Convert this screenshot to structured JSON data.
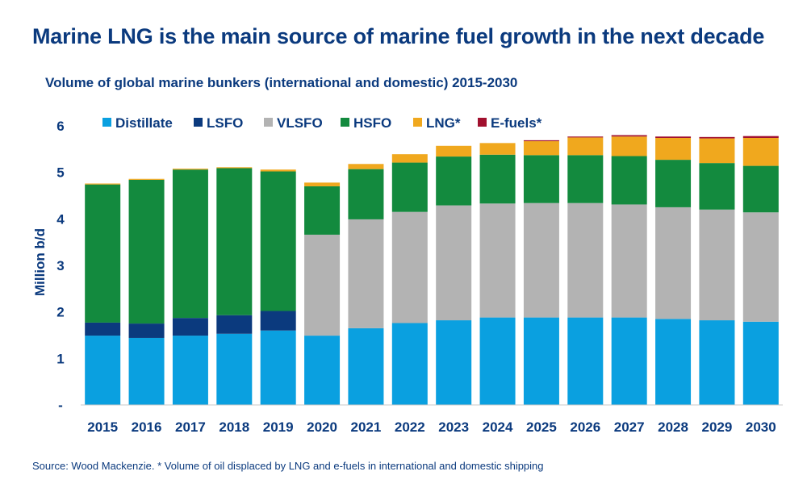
{
  "header": {
    "title": "Marine LNG is the main source of marine fuel growth in the next decade",
    "subtitle": "Volume of global marine bunkers (international and domestic) 2015-2030"
  },
  "footer": {
    "source": "Source: Wood Mackenzie. * Volume of oil displaced by LNG and e-fuels in international and domestic shipping"
  },
  "chart_data": {
    "type": "bar",
    "stacked": true,
    "title": "Volume of global marine bunkers (international and domestic) 2015-2030",
    "xlabel": "",
    "ylabel": "Million b/d",
    "ylim": [
      0,
      6
    ],
    "yticks": [
      "-",
      "1",
      "2",
      "3",
      "4",
      "5",
      "6"
    ],
    "grid": false,
    "legend_position": "top",
    "categories": [
      "2015",
      "2016",
      "2017",
      "2018",
      "2019",
      "2020",
      "2021",
      "2022",
      "2023",
      "2024",
      "2025",
      "2026",
      "2027",
      "2028",
      "2029",
      "2030"
    ],
    "series": [
      {
        "name": "Distillate",
        "color": "#0aa0e0",
        "values": [
          1.49,
          1.44,
          1.49,
          1.53,
          1.6,
          1.49,
          1.65,
          1.76,
          1.82,
          1.88,
          1.88,
          1.88,
          1.88,
          1.85,
          1.82,
          1.79
        ]
      },
      {
        "name": "LSFO",
        "color": "#0b3a7e",
        "values": [
          0.28,
          0.31,
          0.38,
          0.4,
          0.42,
          0.0,
          0.0,
          0.0,
          0.0,
          0.0,
          0.0,
          0.0,
          0.0,
          0.0,
          0.0,
          0.0
        ]
      },
      {
        "name": "VLSFO",
        "color": "#b3b3b3",
        "values": [
          0.0,
          0.0,
          0.0,
          0.0,
          0.0,
          2.17,
          2.34,
          2.39,
          2.47,
          2.45,
          2.46,
          2.46,
          2.43,
          2.4,
          2.38,
          2.35
        ]
      },
      {
        "name": "HSFO",
        "color": "#138a3e",
        "values": [
          2.97,
          3.09,
          3.19,
          3.16,
          3.0,
          1.04,
          1.08,
          1.06,
          1.05,
          1.05,
          1.03,
          1.03,
          1.04,
          1.02,
          1.0,
          1.0
        ]
      },
      {
        "name": "LNG*",
        "color": "#f0a81e",
        "values": [
          0.02,
          0.02,
          0.02,
          0.02,
          0.04,
          0.08,
          0.11,
          0.18,
          0.23,
          0.25,
          0.3,
          0.38,
          0.42,
          0.47,
          0.53,
          0.6
        ]
      },
      {
        "name": "E-fuels*",
        "color": "#a1102e",
        "values": [
          0.0,
          0.0,
          0.0,
          0.0,
          0.0,
          0.0,
          0.0,
          0.0,
          0.0,
          0.0,
          0.02,
          0.02,
          0.03,
          0.03,
          0.03,
          0.04
        ]
      }
    ]
  }
}
